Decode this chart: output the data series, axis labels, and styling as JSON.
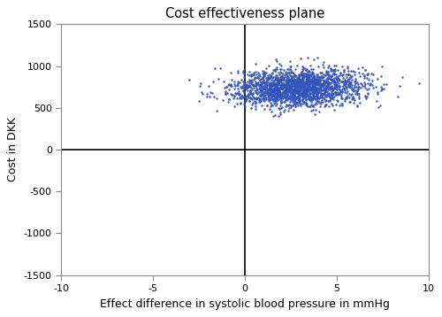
{
  "title": "Cost effectiveness plane",
  "xlabel": "Effect difference in systolic blood pressure in mmHg",
  "ylabel": "Cost in DKK",
  "xlim": [
    -10,
    10
  ],
  "ylim": [
    -1500,
    1500
  ],
  "xticks": [
    -10,
    -5,
    0,
    5,
    10
  ],
  "yticks": [
    -1500,
    -1000,
    -500,
    0,
    500,
    1000,
    1500
  ],
  "dot_color": "#3355bb",
  "dot_size": 3,
  "n_points": 2000,
  "cluster_x_mean": 2.8,
  "cluster_x_std": 1.8,
  "cluster_y_mean": 720,
  "cluster_y_std": 110,
  "background_color": "#ffffff",
  "seed": 42
}
